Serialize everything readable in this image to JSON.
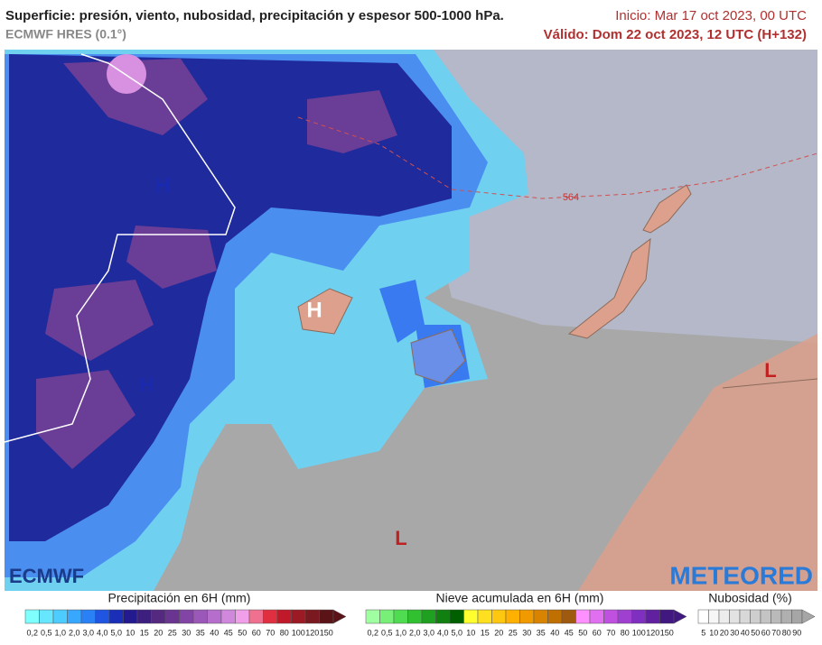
{
  "header": {
    "title": "Superficie: presión, viento, nubosidad, precipitación y espesor 500-1000 hPa.",
    "model": "ECMWF HRES (0.1°)",
    "start": "Inicio: Mar 17 oct 2023, 00 UTC",
    "valid": "Válido: Dom 22 oct 2023, 12 UTC (H+132)"
  },
  "map": {
    "highs": [
      "H",
      "H",
      "H"
    ],
    "lows": [
      "L",
      "L"
    ],
    "thickness_label": "564"
  },
  "logos": {
    "left": "ECMWF",
    "right": "METEORED"
  },
  "legends": [
    {
      "title": "Precipitación en 6H (mm)",
      "labels": [
        "0,2",
        "0,5",
        "1,0",
        "2,0",
        "3,0",
        "4,0",
        "5,0",
        "10",
        "15",
        "20",
        "25",
        "30",
        "35",
        "40",
        "45",
        "50",
        "60",
        "70",
        "80",
        "100",
        "120",
        "150"
      ],
      "colors": [
        "#80ffff",
        "#66e6ff",
        "#4dccff",
        "#38a8ff",
        "#2a80f5",
        "#1f55e0",
        "#1b2eb8",
        "#241a8f",
        "#3d1f80",
        "#55297f",
        "#6a3590",
        "#8245a5",
        "#9c58b8",
        "#b56ecb",
        "#cf88dc",
        "#f0a0e8",
        "#f07090",
        "#e03040",
        "#c01a2a",
        "#9c1a24",
        "#7a1a20",
        "#5a1418"
      ]
    },
    {
      "title": "Nieve acumulada en 6H (mm)",
      "labels": [
        "0,2",
        "0,5",
        "1,0",
        "2,0",
        "3,0",
        "4,0",
        "5,0",
        "10",
        "15",
        "20",
        "25",
        "30",
        "35",
        "40",
        "45",
        "50",
        "60",
        "70",
        "80",
        "100",
        "120",
        "150"
      ],
      "colors": [
        "#a0ffa0",
        "#78f078",
        "#50dc50",
        "#30c030",
        "#20a020",
        "#108010",
        "#006000",
        "#ffff30",
        "#ffe020",
        "#ffc810",
        "#ffb000",
        "#f09a00",
        "#d88400",
        "#c07000",
        "#a05a10",
        "#ff90ff",
        "#e070f0",
        "#c050e0",
        "#a040d0",
        "#8030c0",
        "#6020a0",
        "#401880"
      ]
    },
    {
      "title": "Nubosidad (%)",
      "labels": [
        "5",
        "10",
        "20",
        "30",
        "40",
        "50",
        "60",
        "70",
        "80",
        "90"
      ],
      "colors": [
        "#ffffff",
        "#f6f6f6",
        "#ececec",
        "#e2e2e2",
        "#d8d8d8",
        "#cecece",
        "#c4c4c4",
        "#bababa",
        "#b0b0b0",
        "#a6a6a6"
      ]
    }
  ]
}
